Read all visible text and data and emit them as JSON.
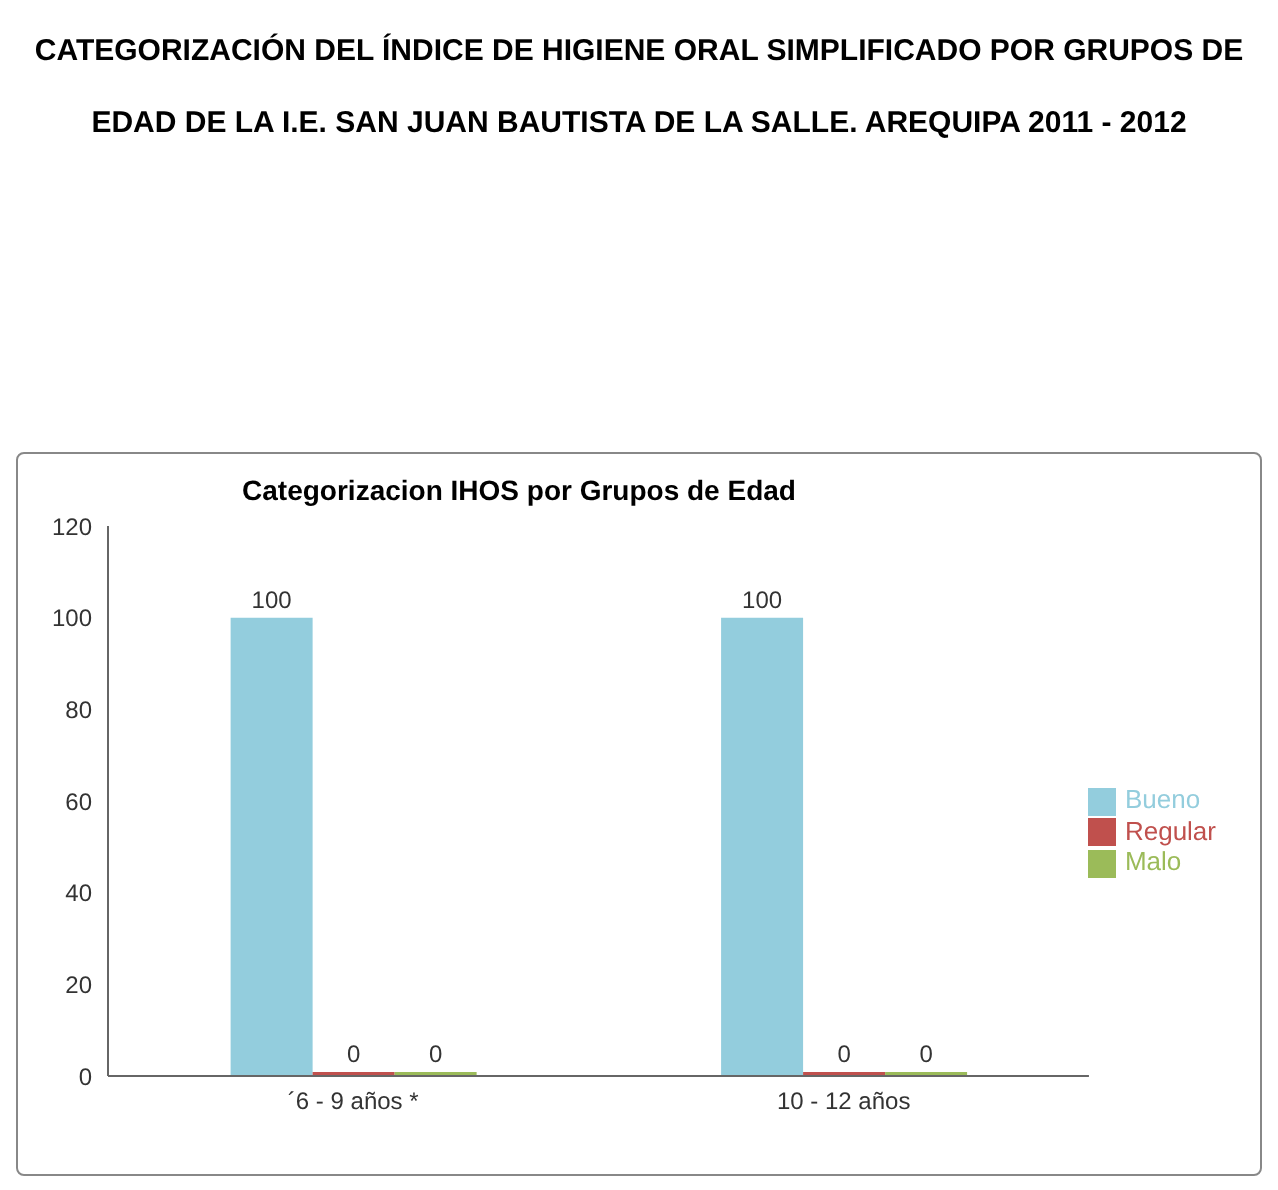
{
  "chart_data": {
    "type": "bar",
    "title": "CATEGORIZACIÓN DEL ÍNDICE DE HIGIENE ORAL SIMPLIFICADO POR GRUPOS DE EDAD DE LA I.E. SAN JUAN BAUTISTA DE LA SALLE. AREQUIPA 2011 - 2012",
    "subtitle": "Categorizacion  IHOS por Grupos de Edad",
    "categories": [
      "´6 - 9 años *",
      "10 - 12 años"
    ],
    "series": [
      {
        "name": "Bueno",
        "color": "#93cddd",
        "values": [
          100,
          100
        ]
      },
      {
        "name": "Regular",
        "color": "#c0504d",
        "values": [
          0,
          0
        ]
      },
      {
        "name": "Malo",
        "color": "#9bbb59",
        "values": [
          0,
          0
        ]
      }
    ],
    "ylim": [
      0,
      120
    ],
    "yticks": [
      0,
      20,
      40,
      60,
      80,
      100,
      120
    ],
    "data_labels": true,
    "legend": "right"
  }
}
